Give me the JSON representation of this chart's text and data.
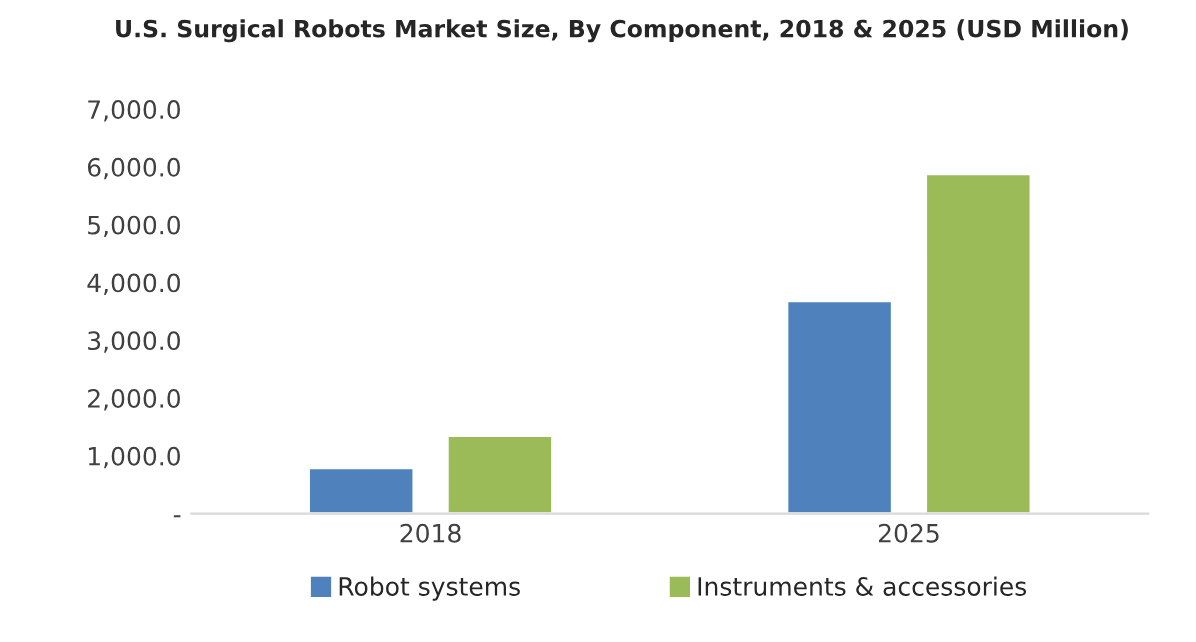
{
  "chart_data": {
    "type": "bar",
    "title": "U.S. Surgical Robots Market Size, By Component, 2018 & 2025 (USD Million)",
    "categories": [
      "2018",
      "2025"
    ],
    "series": [
      {
        "name": "Robot systems",
        "color": "#4f81bd",
        "values": [
          790,
          3680
        ]
      },
      {
        "name": "Instruments & accessories",
        "color": "#9bbb59",
        "values": [
          1350,
          5880
        ]
      }
    ],
    "ylim": [
      0,
      7000
    ],
    "yticks": [
      {
        "value": 0,
        "label": "-"
      },
      {
        "value": 1000,
        "label": "1,000.0"
      },
      {
        "value": 2000,
        "label": "2,000.0"
      },
      {
        "value": 3000,
        "label": "3,000.0"
      },
      {
        "value": 4000,
        "label": "4,000.0"
      },
      {
        "value": 5000,
        "label": "5,000.0"
      },
      {
        "value": 6000,
        "label": "6,000.0"
      },
      {
        "value": 7000,
        "label": "7,000.0"
      }
    ],
    "legend": "bottom"
  }
}
